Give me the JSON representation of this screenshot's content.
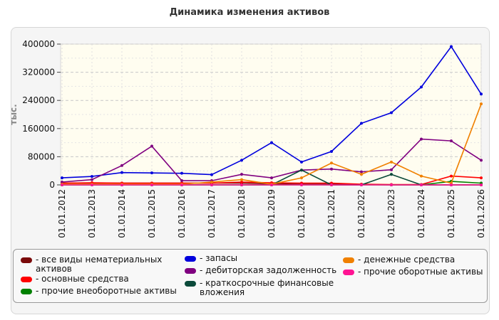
{
  "chart_data": {
    "type": "line",
    "title": "Динамика изменения активов",
    "xlabel": "",
    "ylabel": "тыс.",
    "ylim": [
      0,
      400000
    ],
    "yticks": [
      "0",
      "80000",
      "160000",
      "240000",
      "320000",
      "400000"
    ],
    "categories": [
      "01.01.2012",
      "01.01.2013",
      "01.01.2014",
      "01.01.2015",
      "01.01.2016",
      "01.01.2017",
      "01.01.2018",
      "01.01.2019",
      "01.01.2020",
      "01.01.2021",
      "01.01.2022",
      "01.01.2023",
      "01.01.2024",
      "01.01.2025",
      "01.01.2026"
    ],
    "grid": true,
    "legend_position": "bottom",
    "series": [
      {
        "name": "все виды нематериальных активов",
        "color": "#7a0a0a",
        "values": [
          5000,
          5000,
          5000,
          5000,
          5000,
          5000,
          5000,
          3000,
          2000,
          2000,
          1000,
          0,
          0,
          0,
          0
        ]
      },
      {
        "name": "основные средства",
        "color": "#ff0000",
        "values": [
          5000,
          6000,
          5000,
          5000,
          5000,
          5000,
          8000,
          6000,
          5000,
          5000,
          2000,
          1000,
          1000,
          25000,
          20000
        ]
      },
      {
        "name": "прочие внеоборотные активы",
        "color": "#008000",
        "values": [
          0,
          0,
          0,
          0,
          0,
          0,
          0,
          0,
          0,
          0,
          0,
          0,
          0,
          10000,
          5000
        ]
      },
      {
        "name": "запасы",
        "color": "#0000dd",
        "values": [
          20000,
          24000,
          35000,
          34000,
          33000,
          29000,
          70000,
          120000,
          65000,
          95000,
          175000,
          205000,
          278000,
          393000,
          258000
        ]
      },
      {
        "name": "дебиторская задолженность",
        "color": "#800080",
        "values": [
          8000,
          15000,
          55000,
          110000,
          12000,
          12000,
          30000,
          20000,
          42000,
          45000,
          37000,
          43000,
          130000,
          125000,
          70000
        ]
      },
      {
        "name": "краткосрочные финансовые вложения",
        "color": "#0b4a3a",
        "values": [
          0,
          0,
          0,
          0,
          0,
          0,
          0,
          0,
          42000,
          0,
          0,
          30000,
          0,
          0,
          0
        ]
      },
      {
        "name": "денежные средства",
        "color": "#f08000",
        "values": [
          2000,
          2000,
          2000,
          2000,
          2000,
          8000,
          15000,
          2000,
          20000,
          62000,
          30000,
          65000,
          25000,
          5000,
          230000
        ]
      },
      {
        "name": "прочие оборотные активы",
        "color": "#ff1493",
        "values": [
          0,
          0,
          0,
          0,
          0,
          0,
          0,
          0,
          0,
          0,
          0,
          0,
          0,
          0,
          0
        ]
      }
    ]
  },
  "legend": {
    "items": [
      {
        "label": "- все виды нематериальных активов",
        "color": "#7a0a0a"
      },
      {
        "label": "- основные средства",
        "color": "#ff0000"
      },
      {
        "label": "- прочие внеоборотные активы",
        "color": "#008000"
      },
      {
        "label": "- запасы",
        "color": "#0000dd"
      },
      {
        "label": "- дебиторская задолженность",
        "color": "#800080"
      },
      {
        "label": "- краткосрочные финансовые вложения",
        "color": "#0b4a3a"
      },
      {
        "label": "- денежные средства",
        "color": "#f08000"
      },
      {
        "label": "- прочие оборотные активы",
        "color": "#ff1493"
      }
    ]
  }
}
